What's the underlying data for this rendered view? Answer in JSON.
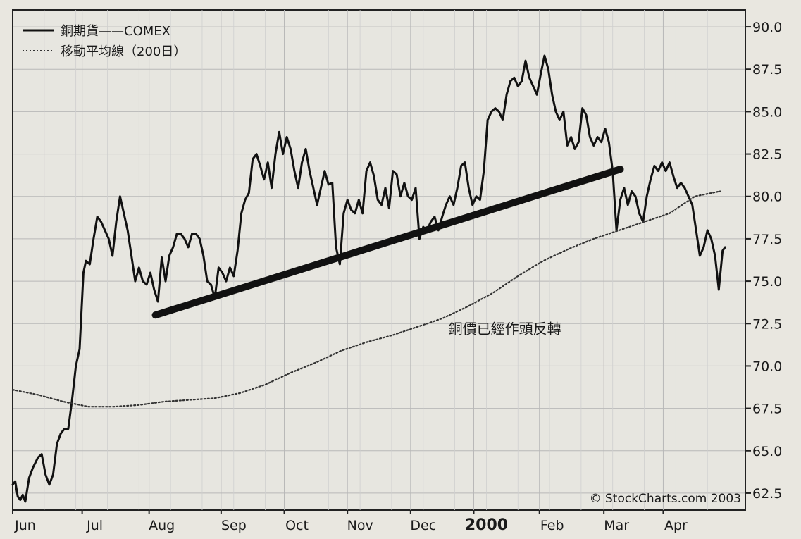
{
  "chart_data": {
    "type": "line",
    "title": "",
    "xlabel": "",
    "ylabel": "",
    "ylim": [
      61.5,
      91
    ],
    "yticks": [
      "90.0",
      "87.5",
      "85.0",
      "82.5",
      "80.0",
      "77.5",
      "75.0",
      "72.5",
      "70.0",
      "67.5",
      "65.0",
      "62.5"
    ],
    "grid": true,
    "legend_position": "top-left",
    "x_labels": [
      "Jun",
      "Jul",
      "Aug",
      "Sep",
      "Oct",
      "Nov",
      "Dec",
      "2000",
      "Feb",
      "Mar",
      "Apr"
    ],
    "series": [
      {
        "name": "銅期貨——COMEX",
        "style": "solid",
        "points": [
          [
            0.0,
            63.0
          ],
          [
            0.2,
            63.2
          ],
          [
            0.4,
            62.3
          ],
          [
            0.6,
            62.1
          ],
          [
            0.8,
            62.4
          ],
          [
            1.0,
            62.0
          ],
          [
            1.3,
            63.4
          ],
          [
            1.6,
            64.0
          ],
          [
            2.0,
            64.6
          ],
          [
            2.3,
            64.8
          ],
          [
            2.6,
            63.6
          ],
          [
            2.9,
            63.0
          ],
          [
            3.2,
            63.6
          ],
          [
            3.5,
            65.4
          ],
          [
            3.8,
            66.0
          ],
          [
            4.1,
            66.3
          ],
          [
            4.4,
            66.3
          ],
          [
            4.7,
            68.0
          ],
          [
            5.0,
            70.0
          ],
          [
            5.3,
            71.0
          ],
          [
            5.6,
            75.5
          ],
          [
            5.8,
            76.2
          ],
          [
            6.1,
            76.0
          ],
          [
            6.4,
            77.5
          ],
          [
            6.7,
            78.8
          ],
          [
            7.0,
            78.5
          ],
          [
            7.3,
            78.0
          ],
          [
            7.6,
            77.5
          ],
          [
            7.9,
            76.5
          ],
          [
            8.2,
            78.5
          ],
          [
            8.5,
            80.0
          ],
          [
            8.8,
            79.0
          ],
          [
            9.1,
            78.0
          ],
          [
            9.4,
            76.5
          ],
          [
            9.7,
            75.0
          ],
          [
            10.0,
            75.8
          ],
          [
            10.3,
            75.0
          ],
          [
            10.6,
            74.8
          ],
          [
            10.9,
            75.5
          ],
          [
            11.2,
            74.5
          ],
          [
            11.5,
            73.8
          ],
          [
            11.8,
            76.4
          ],
          [
            12.1,
            75.0
          ],
          [
            12.4,
            76.5
          ],
          [
            12.7,
            77.0
          ],
          [
            13.0,
            77.8
          ],
          [
            13.3,
            77.8
          ],
          [
            13.6,
            77.5
          ],
          [
            13.9,
            77.0
          ],
          [
            14.2,
            77.8
          ],
          [
            14.5,
            77.8
          ],
          [
            14.8,
            77.5
          ],
          [
            15.1,
            76.5
          ],
          [
            15.4,
            75.0
          ],
          [
            15.7,
            74.8
          ],
          [
            16.0,
            74.0
          ],
          [
            16.3,
            75.8
          ],
          [
            16.6,
            75.5
          ],
          [
            16.9,
            75.0
          ],
          [
            17.2,
            75.8
          ],
          [
            17.5,
            75.3
          ],
          [
            17.8,
            76.8
          ],
          [
            18.1,
            79.0
          ],
          [
            18.4,
            79.8
          ],
          [
            18.7,
            80.2
          ],
          [
            19.0,
            82.2
          ],
          [
            19.3,
            82.5
          ],
          [
            19.6,
            81.8
          ],
          [
            19.9,
            81.0
          ],
          [
            20.2,
            82.0
          ],
          [
            20.5,
            80.5
          ],
          [
            20.8,
            82.5
          ],
          [
            21.1,
            83.8
          ],
          [
            21.4,
            82.5
          ],
          [
            21.7,
            83.5
          ],
          [
            22.0,
            82.8
          ],
          [
            22.3,
            81.5
          ],
          [
            22.6,
            80.5
          ],
          [
            22.9,
            82.0
          ],
          [
            23.2,
            82.8
          ],
          [
            23.5,
            81.5
          ],
          [
            23.8,
            80.5
          ],
          [
            24.1,
            79.5
          ],
          [
            24.4,
            80.5
          ],
          [
            24.7,
            81.5
          ],
          [
            25.0,
            80.7
          ],
          [
            25.3,
            80.8
          ],
          [
            25.6,
            77.0
          ],
          [
            25.9,
            76.0
          ],
          [
            26.2,
            79.0
          ],
          [
            26.5,
            79.8
          ],
          [
            26.8,
            79.2
          ],
          [
            27.1,
            79.0
          ],
          [
            27.4,
            79.8
          ],
          [
            27.7,
            79.0
          ],
          [
            28.0,
            81.5
          ],
          [
            28.3,
            82.0
          ],
          [
            28.6,
            81.2
          ],
          [
            28.9,
            79.8
          ],
          [
            29.2,
            79.5
          ],
          [
            29.5,
            80.5
          ],
          [
            29.8,
            79.3
          ],
          [
            30.1,
            81.5
          ],
          [
            30.4,
            81.3
          ],
          [
            30.7,
            80.0
          ],
          [
            31.0,
            80.8
          ],
          [
            31.3,
            80.0
          ],
          [
            31.6,
            79.8
          ],
          [
            31.9,
            80.5
          ],
          [
            32.2,
            77.5
          ],
          [
            32.5,
            78.2
          ],
          [
            32.8,
            78.0
          ],
          [
            33.1,
            78.5
          ],
          [
            33.4,
            78.8
          ],
          [
            33.7,
            78.0
          ],
          [
            34.0,
            78.8
          ],
          [
            34.3,
            79.5
          ],
          [
            34.6,
            80.0
          ],
          [
            34.9,
            79.5
          ],
          [
            35.2,
            80.5
          ],
          [
            35.5,
            81.8
          ],
          [
            35.8,
            82.0
          ],
          [
            36.1,
            80.5
          ],
          [
            36.4,
            79.5
          ],
          [
            36.7,
            80.0
          ],
          [
            37.0,
            79.8
          ],
          [
            37.3,
            81.5
          ],
          [
            37.6,
            84.5
          ],
          [
            37.9,
            85.0
          ],
          [
            38.2,
            85.2
          ],
          [
            38.5,
            85.0
          ],
          [
            38.8,
            84.5
          ],
          [
            39.1,
            86.0
          ],
          [
            39.4,
            86.8
          ],
          [
            39.7,
            87.0
          ],
          [
            40.0,
            86.5
          ],
          [
            40.3,
            86.8
          ],
          [
            40.6,
            88.0
          ],
          [
            40.9,
            87.0
          ],
          [
            41.2,
            86.5
          ],
          [
            41.5,
            86.0
          ],
          [
            41.8,
            87.2
          ],
          [
            42.1,
            88.3
          ],
          [
            42.4,
            87.5
          ],
          [
            42.7,
            86.0
          ],
          [
            43.0,
            85.0
          ],
          [
            43.3,
            84.5
          ],
          [
            43.6,
            85.0
          ],
          [
            43.9,
            83.0
          ],
          [
            44.2,
            83.5
          ],
          [
            44.5,
            82.8
          ],
          [
            44.8,
            83.2
          ],
          [
            45.1,
            85.2
          ],
          [
            45.4,
            84.8
          ],
          [
            45.7,
            83.5
          ],
          [
            46.0,
            83.0
          ],
          [
            46.3,
            83.5
          ],
          [
            46.6,
            83.2
          ],
          [
            46.9,
            84.0
          ],
          [
            47.2,
            83.2
          ],
          [
            47.5,
            81.5
          ],
          [
            47.8,
            78.0
          ],
          [
            48.1,
            79.8
          ],
          [
            48.4,
            80.5
          ],
          [
            48.7,
            79.5
          ],
          [
            49.0,
            80.3
          ],
          [
            49.3,
            80.0
          ],
          [
            49.6,
            79.0
          ],
          [
            49.9,
            78.5
          ],
          [
            50.2,
            80.0
          ],
          [
            50.5,
            81.0
          ],
          [
            50.8,
            81.8
          ],
          [
            51.1,
            81.5
          ],
          [
            51.4,
            82.0
          ],
          [
            51.7,
            81.5
          ],
          [
            52.0,
            82.0
          ],
          [
            52.3,
            81.2
          ],
          [
            52.6,
            80.5
          ],
          [
            52.9,
            80.8
          ],
          [
            53.2,
            80.5
          ],
          [
            53.5,
            80.0
          ],
          [
            53.8,
            79.5
          ],
          [
            54.1,
            78.0
          ],
          [
            54.4,
            76.5
          ],
          [
            54.7,
            77.0
          ],
          [
            55.0,
            78.0
          ],
          [
            55.3,
            77.5
          ],
          [
            55.6,
            76.5
          ],
          [
            55.9,
            74.5
          ],
          [
            56.2,
            76.8
          ],
          [
            56.4,
            77.0
          ]
        ]
      },
      {
        "name": "移動平均線（200日）",
        "style": "dotted",
        "points": [
          [
            0,
            68.6
          ],
          [
            2,
            68.3
          ],
          [
            4,
            67.9
          ],
          [
            6,
            67.6
          ],
          [
            8,
            67.6
          ],
          [
            10,
            67.7
          ],
          [
            12,
            67.9
          ],
          [
            14,
            68.0
          ],
          [
            16,
            68.1
          ],
          [
            18,
            68.4
          ],
          [
            20,
            68.9
          ],
          [
            22,
            69.6
          ],
          [
            24,
            70.2
          ],
          [
            26,
            70.9
          ],
          [
            28,
            71.4
          ],
          [
            30,
            71.8
          ],
          [
            32,
            72.3
          ],
          [
            34,
            72.8
          ],
          [
            36,
            73.5
          ],
          [
            38,
            74.3
          ],
          [
            40,
            75.3
          ],
          [
            42,
            76.2
          ],
          [
            44,
            76.9
          ],
          [
            46,
            77.5
          ],
          [
            48,
            78.0
          ],
          [
            50,
            78.5
          ],
          [
            52,
            79.0
          ],
          [
            54,
            80.0
          ],
          [
            56,
            80.3
          ]
        ]
      },
      {
        "name": "",
        "style": "trendline",
        "points": [
          [
            11.3,
            73.0
          ],
          [
            48.1,
            81.6
          ]
        ]
      }
    ],
    "annotations": [
      {
        "text": "銅價已經作頭反轉",
        "x": 34.5,
        "y": 71.9
      }
    ],
    "credit": "© StockCharts.com 2003"
  }
}
